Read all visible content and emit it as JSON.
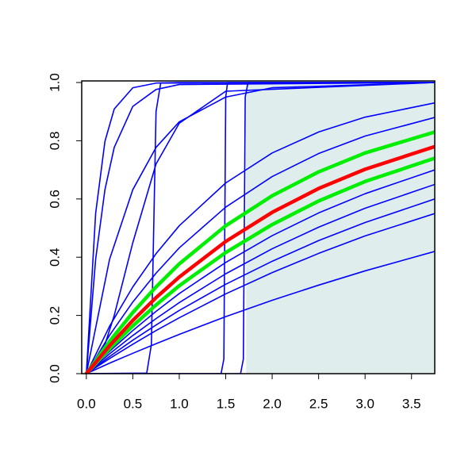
{
  "chart_data": {
    "type": "line",
    "xlim": [
      -0.05,
      3.75
    ],
    "ylim": [
      0,
      1
    ],
    "xticks": [
      {
        "value": 0,
        "label": "0.0"
      },
      0.5,
      {
        "value": 1,
        "label": "1.0"
      },
      1.5,
      {
        "value": 2,
        "label": "2.0"
      },
      2.5,
      {
        "value": 3,
        "label": "3.0"
      },
      3.5
    ],
    "yticks": [
      {
        "value": 0,
        "label": "0.0"
      },
      0.2,
      0.4,
      0.6,
      0.8,
      {
        "value": 1,
        "label": "1.0"
      }
    ],
    "shaded_region": {
      "x": [
        1.72,
        3.75
      ],
      "y": [
        0,
        1
      ],
      "color": "#e0eded"
    },
    "series": [
      {
        "color": "#0000ff",
        "x": [
          0,
          0.1,
          0.2,
          0.3,
          0.5,
          0.75,
          1,
          3.75
        ],
        "values": [
          0,
          0.551,
          0.798,
          0.909,
          0.982,
          0.998,
          1,
          1
        ]
      },
      {
        "color": "#0000ff",
        "x": [
          0,
          0.1,
          0.2,
          0.3,
          0.5,
          0.75,
          1,
          3.75
        ],
        "values": [
          0,
          0.393,
          0.632,
          0.777,
          0.918,
          0.976,
          0.993,
          1
        ]
      },
      {
        "color": "#0000ff",
        "x": [
          0,
          0.25,
          0.5,
          0.75,
          1,
          1.5,
          2,
          3.75
        ],
        "values": [
          0,
          0.393,
          0.632,
          0.777,
          0.865,
          0.95,
          0.982,
          1
        ]
      },
      {
        "color": "#0000ff",
        "x": [
          0,
          0.1,
          0.2,
          0.3,
          0.5,
          0.75,
          1,
          1.5,
          3.75
        ],
        "values": [
          0,
          0.03,
          0.1,
          0.2,
          0.45,
          0.72,
          0.86,
          0.97,
          1
        ]
      },
      {
        "color": "#0000ff",
        "x": [
          0,
          0.65,
          0.7,
          0.75,
          0.8,
          3.75
        ],
        "values": [
          0,
          0.002,
          0.1,
          0.9,
          0.998,
          1
        ]
      },
      {
        "color": "#0000ff",
        "x": [
          0,
          1.45,
          1.48,
          1.5,
          1.52,
          3.75
        ],
        "values": [
          0,
          0,
          0.05,
          0.95,
          1,
          1
        ]
      },
      {
        "color": "#0000ff",
        "x": [
          0,
          1.66,
          1.69,
          1.71,
          1.74,
          3.75
        ],
        "values": [
          0,
          0,
          0.05,
          0.95,
          1,
          1
        ]
      },
      {
        "color": "#0000ff",
        "x": [
          0,
          0.25,
          0.5,
          0.75,
          1,
          1.5,
          2,
          2.5,
          3,
          3.75
        ],
        "values": [
          0,
          0.163,
          0.298,
          0.412,
          0.508,
          0.655,
          0.758,
          0.83,
          0.881,
          0.93
        ]
      },
      {
        "color": "#0000ff",
        "x": [
          0,
          0.25,
          0.5,
          0.75,
          1,
          1.5,
          2,
          2.5,
          3,
          3.75
        ],
        "values": [
          0,
          0.132,
          0.246,
          0.345,
          0.432,
          0.572,
          0.677,
          0.756,
          0.816,
          0.88
        ]
      },
      {
        "color": "#0000ff",
        "x": [
          0,
          0.25,
          0.5,
          0.75,
          1,
          1.5,
          2,
          2.5,
          3,
          3.75
        ],
        "values": [
          0,
          0.077,
          0.148,
          0.214,
          0.275,
          0.382,
          0.474,
          0.552,
          0.618,
          0.7
        ]
      },
      {
        "color": "#0000ff",
        "x": [
          0,
          0.25,
          0.5,
          0.75,
          1,
          1.5,
          2,
          2.5,
          3,
          3.75
        ],
        "values": [
          0,
          0.068,
          0.131,
          0.189,
          0.244,
          0.343,
          0.429,
          0.503,
          0.568,
          0.65
        ]
      },
      {
        "color": "#0000ff",
        "x": [
          0,
          0.25,
          0.5,
          0.75,
          1,
          1.5,
          2,
          2.5,
          3,
          3.75
        ],
        "values": [
          0,
          0.059,
          0.115,
          0.167,
          0.217,
          0.307,
          0.386,
          0.457,
          0.519,
          0.6
        ]
      },
      {
        "color": "#0000ff",
        "x": [
          0,
          0.25,
          0.5,
          0.75,
          1,
          1.5,
          2,
          2.5,
          3,
          3.75
        ],
        "values": [
          0,
          0.052,
          0.101,
          0.148,
          0.192,
          0.274,
          0.347,
          0.413,
          0.473,
          0.55
        ]
      },
      {
        "color": "#0000ff",
        "x": [
          0,
          0.25,
          0.5,
          0.75,
          1,
          1.5,
          2,
          2.5,
          3,
          3.75
        ],
        "values": [
          0,
          0.036,
          0.07,
          0.103,
          0.135,
          0.196,
          0.252,
          0.304,
          0.353,
          0.42
        ]
      },
      {
        "color": "#00ee00",
        "emphasis": true,
        "x": [
          0,
          0.25,
          0.5,
          0.75,
          1,
          1.5,
          2,
          2.5,
          3,
          3.75
        ],
        "values": [
          0,
          0.111,
          0.21,
          0.298,
          0.377,
          0.508,
          0.611,
          0.693,
          0.758,
          0.83
        ]
      },
      {
        "color": "#00ee00",
        "emphasis": true,
        "x": [
          0,
          0.25,
          0.5,
          0.75,
          1,
          1.5,
          2,
          2.5,
          3,
          3.75
        ],
        "values": [
          0,
          0.086,
          0.164,
          0.236,
          0.302,
          0.416,
          0.512,
          0.593,
          0.66,
          0.74
        ]
      },
      {
        "color": "#ff0000",
        "emphasis": true,
        "x": [
          0,
          0.25,
          0.5,
          0.75,
          1,
          1.5,
          2,
          2.5,
          3,
          3.75
        ],
        "values": [
          0,
          0.096,
          0.183,
          0.261,
          0.332,
          0.454,
          0.554,
          0.636,
          0.702,
          0.78
        ]
      }
    ]
  }
}
